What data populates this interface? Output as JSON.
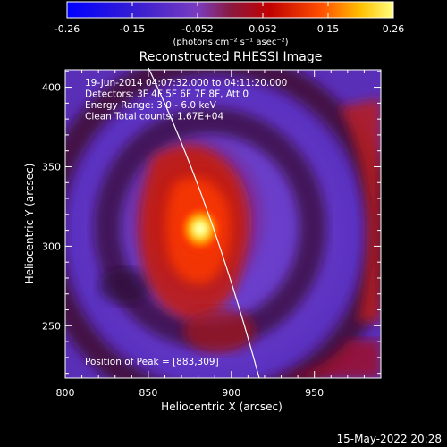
{
  "colorbar": {
    "ticks": [
      "-0.26",
      "-0.15",
      "-0.052",
      "0.052",
      "0.15",
      "0.26"
    ],
    "units": "(photons cm⁻² s⁻¹ asec⁻²)",
    "vmin": -0.26,
    "vmax": 0.26
  },
  "plot": {
    "title": "Reconstructed RHESSI Image",
    "xlabel": "Heliocentric X (arcsec)",
    "ylabel": "Heliocentric Y (arcsec)",
    "x_ticks": [
      "800",
      "850",
      "900",
      "950"
    ],
    "y_ticks": [
      "250",
      "300",
      "350",
      "400"
    ],
    "xlim": [
      800,
      990
    ],
    "ylim": [
      217,
      411
    ],
    "info_lines": [
      "19-Jun-2014 04:07:32.000 to 04:11:20.000",
      "Detectors: 3F 4F 5F 6F 7F 8F, Att 0",
      "Energy Range: 3.0 - 6.0 keV",
      "Clean    Total counts: 1.67E+04"
    ],
    "peak_label": "Position of Peak = [883,309]",
    "peak": [
      883,
      309
    ]
  },
  "footer": {
    "timestamp": "15-May-2022 20:28"
  },
  "colors": {
    "background": "#000000",
    "text": "#ffffff",
    "limb_line": "#ffffff"
  }
}
